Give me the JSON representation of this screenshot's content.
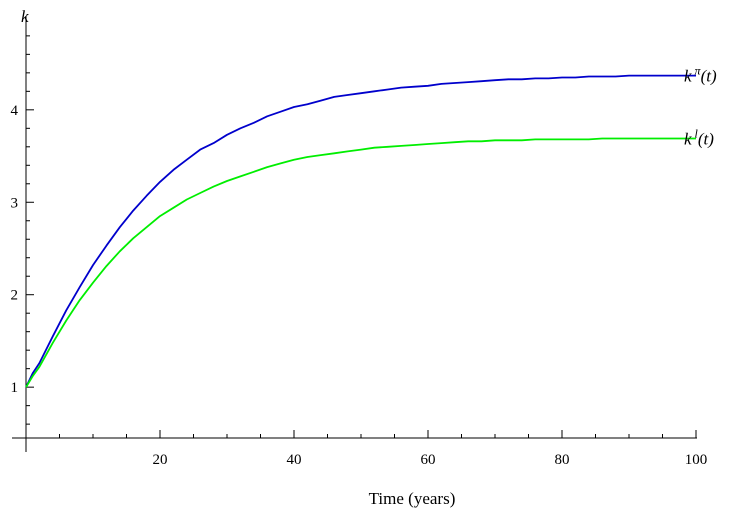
{
  "chart_data": {
    "type": "line",
    "title": "",
    "xlabel": "Time (years)",
    "ylabel": "k",
    "xlim": [
      0,
      100
    ],
    "ylim": [
      0.45,
      4.95
    ],
    "xticks_major": [
      20,
      40,
      60,
      80,
      100
    ],
    "xtick_labels": [
      "20",
      "40",
      "60",
      "80",
      "100"
    ],
    "xticks_minor_step": 5,
    "yticks_major": [
      1,
      2,
      3,
      4
    ],
    "ytick_labels": [
      "1",
      "2",
      "3",
      "4"
    ],
    "yticks_minor_step": 0.2,
    "grid": false,
    "legend": "none",
    "series": [
      {
        "name": "k π(t)",
        "label_base": "k",
        "label_sup": "π",
        "label_tail": "(t)",
        "color": "#0000cc",
        "x": [
          0,
          1,
          2,
          4,
          6,
          8,
          10,
          12,
          14,
          16,
          18,
          20,
          22,
          24,
          26,
          28,
          30,
          32,
          34,
          36,
          38,
          40,
          42,
          44,
          46,
          48,
          50,
          52,
          54,
          56,
          58,
          60,
          62,
          64,
          66,
          68,
          70,
          72,
          74,
          76,
          78,
          80,
          82,
          84,
          86,
          88,
          90,
          92,
          94,
          96,
          98,
          100
        ],
        "y": [
          1.0,
          1.15,
          1.26,
          1.55,
          1.83,
          2.08,
          2.32,
          2.53,
          2.73,
          2.91,
          3.07,
          3.22,
          3.35,
          3.46,
          3.57,
          3.64,
          3.73,
          3.8,
          3.86,
          3.93,
          3.98,
          4.03,
          4.06,
          4.1,
          4.14,
          4.16,
          4.18,
          4.2,
          4.22,
          4.24,
          4.25,
          4.26,
          4.28,
          4.29,
          4.3,
          4.31,
          4.32,
          4.33,
          4.33,
          4.34,
          4.34,
          4.35,
          4.35,
          4.36,
          4.36,
          4.36,
          4.37,
          4.37,
          4.37,
          4.37,
          4.37,
          4.37
        ]
      },
      {
        "name": "k l(t)",
        "label_base": "k",
        "label_sup": "l",
        "label_tail": "(t)",
        "color": "#00ee00",
        "x": [
          0,
          1,
          2,
          4,
          6,
          8,
          10,
          12,
          14,
          16,
          18,
          20,
          22,
          24,
          26,
          28,
          30,
          32,
          34,
          36,
          38,
          40,
          42,
          44,
          46,
          48,
          50,
          52,
          54,
          56,
          58,
          60,
          62,
          64,
          66,
          68,
          70,
          72,
          74,
          76,
          78,
          80,
          82,
          84,
          86,
          88,
          90,
          92,
          94,
          96,
          98,
          100
        ],
        "y": [
          1.0,
          1.12,
          1.22,
          1.48,
          1.72,
          1.94,
          2.13,
          2.31,
          2.47,
          2.61,
          2.73,
          2.85,
          2.94,
          3.03,
          3.1,
          3.17,
          3.23,
          3.28,
          3.33,
          3.38,
          3.42,
          3.46,
          3.49,
          3.51,
          3.53,
          3.55,
          3.57,
          3.59,
          3.6,
          3.61,
          3.62,
          3.63,
          3.64,
          3.65,
          3.66,
          3.66,
          3.67,
          3.67,
          3.67,
          3.68,
          3.68,
          3.68,
          3.68,
          3.68,
          3.69,
          3.69,
          3.69,
          3.69,
          3.69,
          3.69,
          3.69,
          3.69
        ]
      }
    ]
  }
}
